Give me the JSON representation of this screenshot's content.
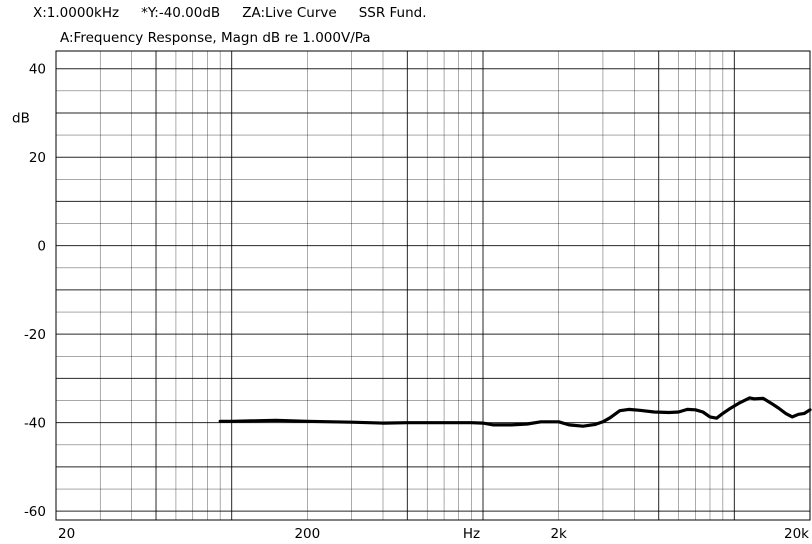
{
  "header": {
    "x_readout": "X:1.0000kHz",
    "y_readout": "*Y:-40.00dB",
    "za_readout": "ZA:Live Curve",
    "mode": "SSR Fund."
  },
  "colors": {
    "grid": "#000000",
    "curve": "#000000",
    "background": "#ffffff"
  },
  "chart_data": {
    "type": "line",
    "title": "A:Frequency Response, Magn dB re 1.000V/Pa",
    "xlabel": "Hz",
    "ylabel": "dB",
    "xscale": "log",
    "xlim": [
      20,
      20000
    ],
    "ylim": [
      -62,
      44
    ],
    "grid": true,
    "x_ticks": [
      {
        "value": 20,
        "label": "20"
      },
      {
        "value": 200,
        "label": "200"
      },
      {
        "value": 2000,
        "label": "2k"
      },
      {
        "value": 20000,
        "label": "20k"
      }
    ],
    "y_ticks": [
      {
        "value": 40,
        "label": "40"
      },
      {
        "value": 20,
        "label": "20"
      },
      {
        "value": 0,
        "label": "0"
      },
      {
        "value": -20,
        "label": "-20"
      },
      {
        "value": -40,
        "label": "-40"
      },
      {
        "value": -60,
        "label": "-60"
      }
    ],
    "series": [
      {
        "x": [
          90,
          100,
          120,
          150,
          200,
          250,
          300,
          400,
          500,
          700,
          900,
          1000,
          1100,
          1300,
          1500,
          1700,
          2000,
          2200,
          2500,
          2800,
          3000,
          3200,
          3500,
          3800,
          4200,
          4800,
          5500,
          6000,
          6500,
          7000,
          7500,
          8000,
          8500,
          9000,
          9500,
          10500,
          11500,
          12000,
          13000,
          14000,
          15000,
          16000,
          17000,
          18000,
          19000,
          20000
        ],
        "y": [
          -39.7,
          -39.7,
          -39.6,
          -39.5,
          -39.7,
          -39.8,
          -39.9,
          -40.1,
          -40.0,
          -40.0,
          -40.0,
          -40.1,
          -40.5,
          -40.5,
          -40.3,
          -39.8,
          -39.8,
          -40.5,
          -40.8,
          -40.4,
          -39.8,
          -38.9,
          -37.3,
          -37.0,
          -37.2,
          -37.6,
          -37.7,
          -37.6,
          -37.0,
          -37.1,
          -37.6,
          -38.7,
          -39.0,
          -37.9,
          -37.0,
          -35.5,
          -34.4,
          -34.6,
          -34.5,
          -35.6,
          -36.7,
          -37.9,
          -38.7,
          -38.1,
          -37.9,
          -37.1
        ]
      }
    ]
  }
}
